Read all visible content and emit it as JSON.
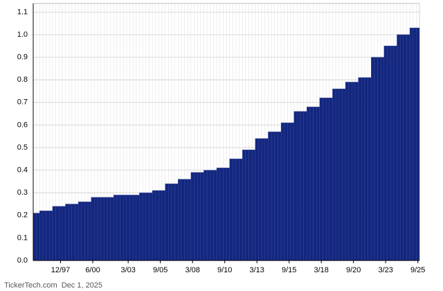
{
  "chart_data": {
    "type": "bar",
    "color": "#13277f",
    "categories": [
      null,
      null,
      null,
      null,
      null,
      null,
      null,
      null,
      "12/97",
      null,
      null,
      null,
      null,
      null,
      null,
      null,
      null,
      null,
      "6/00",
      null,
      null,
      null,
      null,
      null,
      null,
      null,
      null,
      null,
      null,
      "3/03",
      null,
      null,
      null,
      null,
      null,
      null,
      null,
      null,
      null,
      "9/05",
      null,
      null,
      null,
      null,
      null,
      null,
      null,
      null,
      null,
      "3/08",
      null,
      null,
      null,
      null,
      null,
      null,
      null,
      null,
      null,
      "9/10",
      null,
      null,
      null,
      null,
      null,
      null,
      null,
      null,
      null,
      "3/13",
      null,
      null,
      null,
      null,
      null,
      null,
      null,
      null,
      null,
      "9/15",
      null,
      null,
      null,
      null,
      null,
      null,
      null,
      null,
      null,
      "3/18",
      null,
      null,
      null,
      null,
      null,
      null,
      null,
      null,
      null,
      "9/20",
      null,
      null,
      null,
      null,
      null,
      null,
      null,
      null,
      null,
      "3/23",
      null,
      null,
      null,
      null,
      null,
      null,
      null,
      null,
      null,
      "9/25"
    ],
    "values": [
      0.21,
      0.21,
      0.22,
      0.22,
      0.22,
      0.22,
      0.24,
      0.24,
      0.24,
      0.24,
      0.25,
      0.25,
      0.25,
      0.25,
      0.26,
      0.26,
      0.26,
      0.26,
      0.28,
      0.28,
      0.28,
      0.28,
      0.28,
      0.28,
      0.28,
      0.29,
      0.29,
      0.29,
      0.29,
      0.29,
      0.29,
      0.29,
      0.29,
      0.3,
      0.3,
      0.3,
      0.3,
      0.31,
      0.31,
      0.31,
      0.31,
      0.34,
      0.34,
      0.34,
      0.34,
      0.36,
      0.36,
      0.36,
      0.36,
      0.39,
      0.39,
      0.39,
      0.39,
      0.4,
      0.4,
      0.4,
      0.4,
      0.41,
      0.41,
      0.41,
      0.41,
      0.45,
      0.45,
      0.45,
      0.45,
      0.49,
      0.49,
      0.49,
      0.49,
      0.54,
      0.54,
      0.54,
      0.54,
      0.57,
      0.57,
      0.57,
      0.57,
      0.61,
      0.61,
      0.61,
      0.61,
      0.66,
      0.66,
      0.66,
      0.66,
      0.68,
      0.68,
      0.68,
      0.68,
      0.72,
      0.72,
      0.72,
      0.72,
      0.76,
      0.76,
      0.76,
      0.76,
      0.79,
      0.79,
      0.79,
      0.79,
      0.81,
      0.81,
      0.81,
      0.81,
      0.9,
      0.9,
      0.9,
      0.9,
      0.95,
      0.95,
      0.95,
      0.95,
      1.0,
      1.0,
      1.0,
      1.0,
      1.03,
      1.03,
      1.03
    ],
    "ylim": [
      0,
      1.1
    ],
    "yticks": [
      {
        "value": 0,
        "label": "0.0"
      },
      0.1,
      0.2,
      0.3,
      0.4,
      0.5,
      0.6,
      0.7,
      0.8,
      0.9,
      {
        "value": 1,
        "label": "1.0"
      },
      1.1
    ],
    "grid": true,
    "footer": "TickerTech.com  Dec 1, 2025"
  }
}
